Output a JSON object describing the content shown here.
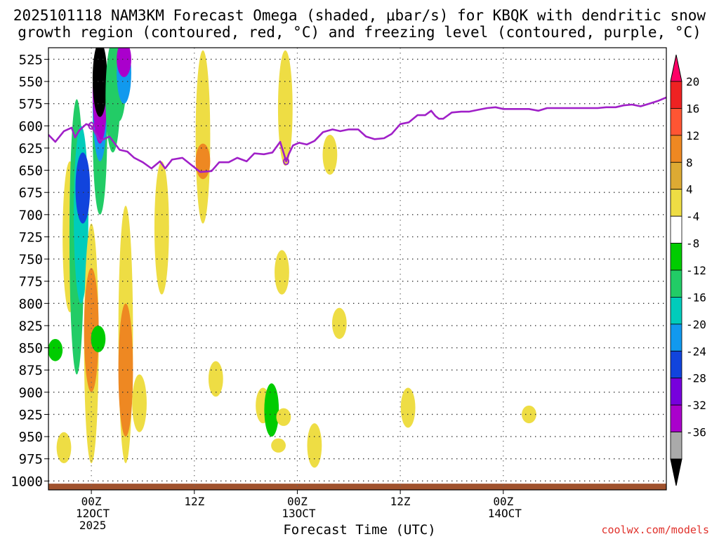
{
  "title_line1": "2025101118 NAM3KM Forecast Omega (shaded, μbar/s) for KBQK with dendritic snow",
  "title_line2": "growth region (contoured, red, °C) and freezing level (contoured, purple, °C)",
  "credit": "coolwx.com/models",
  "chart_data": {
    "type": "heatmap",
    "title": "2025101118 NAM3KM Forecast Omega (shaded, μbar/s) for KBQK with dendritic snow growth region (contoured, red, °C) and freezing level (contoured, purple, °C)",
    "xlabel": "Forecast Time (UTC)",
    "ylabel": "",
    "xlim_hours": [
      -5,
      67
    ],
    "ylim_hpa": [
      1010,
      512
    ],
    "x_ticks": [
      {
        "hour": 0,
        "label": "00Z",
        "sub": [
          "12OCT",
          "2025"
        ]
      },
      {
        "hour": 12,
        "label": "12Z",
        "sub": []
      },
      {
        "hour": 24,
        "label": "00Z",
        "sub": [
          "13OCT"
        ]
      },
      {
        "hour": 36,
        "label": "12Z",
        "sub": []
      },
      {
        "hour": 48,
        "label": "00Z",
        "sub": [
          "14OCT"
        ]
      }
    ],
    "y_ticks": [
      "525",
      "550",
      "575",
      "600",
      "625",
      "650",
      "675",
      "700",
      "725",
      "750",
      "775",
      "800",
      "825",
      "850",
      "875",
      "900",
      "925",
      "950",
      "975",
      "1000"
    ],
    "colorbar": {
      "labels": [
        "20",
        "16",
        "12",
        "8",
        "4",
        "-4",
        "-8",
        "-12",
        "-16",
        "-20",
        "-24",
        "-28",
        "-32",
        "-36"
      ],
      "colors": [
        "#ff0066",
        "#ee2222",
        "#ff5533",
        "#ee8822",
        "#ddaa33",
        "#eedd44",
        "#ffffff",
        "#00cc00",
        "#22cc66",
        "#00ccbb",
        "#1199ee",
        "#1144dd",
        "#7700dd",
        "#aa00cc",
        "#aaaaaa",
        "#000000"
      ]
    },
    "omega_features": [
      {
        "hour": -4.2,
        "p_top": 840,
        "p_bot": 865,
        "value": -6
      },
      {
        "hour": -3.2,
        "p_top": 945,
        "p_bot": 980,
        "value": 5
      },
      {
        "hour": -2.5,
        "p_top": 640,
        "p_bot": 810,
        "value": 5
      },
      {
        "hour": -1.7,
        "p_top": 570,
        "p_bot": 880,
        "value": -8
      },
      {
        "hour": -1.2,
        "p_top": 600,
        "p_bot": 800,
        "value": -14
      },
      {
        "hour": -1.0,
        "p_top": 630,
        "p_bot": 710,
        "value": -22
      },
      {
        "hour": 0.0,
        "p_top": 710,
        "p_bot": 980,
        "value": 6
      },
      {
        "hour": 0.0,
        "p_top": 760,
        "p_bot": 900,
        "value": 11
      },
      {
        "hour": 0.8,
        "p_top": 825,
        "p_bot": 855,
        "value": -6
      },
      {
        "hour": 1.0,
        "p_top": 505,
        "p_bot": 700,
        "value": -8
      },
      {
        "hour": 1.0,
        "p_top": 505,
        "p_bot": 640,
        "value": -16
      },
      {
        "hour": 1.0,
        "p_top": 505,
        "p_bot": 620,
        "value": -28
      },
      {
        "hour": 1.0,
        "p_top": 505,
        "p_bot": 590,
        "value": -36
      },
      {
        "hour": 2.5,
        "p_top": 505,
        "p_bot": 630,
        "value": -8
      },
      {
        "hour": 3.2,
        "p_top": 505,
        "p_bot": 595,
        "value": -8
      },
      {
        "hour": 3.8,
        "p_top": 505,
        "p_bot": 575,
        "value": -16
      },
      {
        "hour": 3.8,
        "p_top": 505,
        "p_bot": 545,
        "value": -28
      },
      {
        "hour": 4.0,
        "p_top": 690,
        "p_bot": 980,
        "value": 6
      },
      {
        "hour": 4.0,
        "p_top": 800,
        "p_bot": 950,
        "value": 11
      },
      {
        "hour": 5.6,
        "p_top": 880,
        "p_bot": 945,
        "value": 5
      },
      {
        "hour": 8.2,
        "p_top": 640,
        "p_bot": 790,
        "value": 5
      },
      {
        "hour": 13.0,
        "p_top": 515,
        "p_bot": 710,
        "value": 5
      },
      {
        "hour": 13.0,
        "p_top": 620,
        "p_bot": 660,
        "value": 9
      },
      {
        "hour": 14.5,
        "p_top": 865,
        "p_bot": 905,
        "value": 5
      },
      {
        "hour": 20.0,
        "p_top": 895,
        "p_bot": 935,
        "value": 5
      },
      {
        "hour": 21.0,
        "p_top": 890,
        "p_bot": 950,
        "value": -6
      },
      {
        "hour": 21.8,
        "p_top": 952,
        "p_bot": 968,
        "value": 5
      },
      {
        "hour": 22.4,
        "p_top": 918,
        "p_bot": 938,
        "value": 5
      },
      {
        "hour": 22.6,
        "p_top": 515,
        "p_bot": 645,
        "value": 5
      },
      {
        "hour": 22.2,
        "p_top": 740,
        "p_bot": 790,
        "value": 5
      },
      {
        "hour": 26.0,
        "p_top": 935,
        "p_bot": 985,
        "value": 5
      },
      {
        "hour": 27.8,
        "p_top": 610,
        "p_bot": 655,
        "value": 5
      },
      {
        "hour": 28.9,
        "p_top": 805,
        "p_bot": 840,
        "value": 5
      },
      {
        "hour": 36.9,
        "p_top": 895,
        "p_bot": 940,
        "value": 5
      },
      {
        "hour": 51.0,
        "p_top": 915,
        "p_bot": 935,
        "value": 5
      }
    ],
    "freezing_level": {
      "color": "#a020c8",
      "hours": [
        -5,
        -4.2,
        -3.2,
        -2.3,
        -1.9,
        -1.4,
        -0.6,
        0.0,
        1.0,
        2.1,
        3.3,
        4.2,
        5.0,
        6.0,
        7.0,
        8.0,
        8.6,
        9.4,
        10.6,
        11.9,
        12.7,
        14.0,
        14.9,
        16.0,
        17.0,
        18.1,
        19.0,
        20.1,
        21.1,
        22.0,
        22.7,
        23.0,
        23.5,
        24.2,
        25.1,
        26.0,
        27.0,
        28.1,
        29.0,
        30.0,
        31.1,
        32.0,
        33.0,
        34.1,
        35.0,
        36.0,
        37.0,
        38.0,
        38.9,
        39.6,
        40.1,
        40.5,
        41.0,
        42.0,
        43.1,
        44.0,
        45.0,
        46.1,
        47.1,
        48.0,
        49.0,
        50.0,
        51.0,
        52.1,
        53.1,
        54.0,
        55.0,
        56.1,
        57.0,
        57.9,
        59.0,
        60.0,
        61.1,
        62.0,
        63.0,
        64.0,
        65.0,
        66.0,
        67.0
      ],
      "values": [
        610,
        618,
        606,
        602,
        613,
        605,
        598,
        600,
        617,
        612,
        627,
        629,
        636,
        641,
        648,
        640,
        648,
        638,
        636,
        646,
        652,
        651,
        641,
        641,
        636,
        640,
        631,
        632,
        630,
        618,
        640,
        632,
        622,
        619,
        621,
        617,
        607,
        604,
        606,
        604,
        604,
        612,
        615,
        614,
        609,
        598,
        596,
        588,
        588,
        583,
        589,
        592,
        592,
        585,
        584,
        584,
        582,
        580,
        579,
        581,
        581,
        581,
        581,
        583,
        580,
        580,
        580,
        580,
        580,
        580,
        580,
        579,
        579,
        577,
        576,
        578,
        575,
        572,
        568
      ]
    },
    "terrain_band_hpa": [
      1003,
      1015
    ]
  }
}
